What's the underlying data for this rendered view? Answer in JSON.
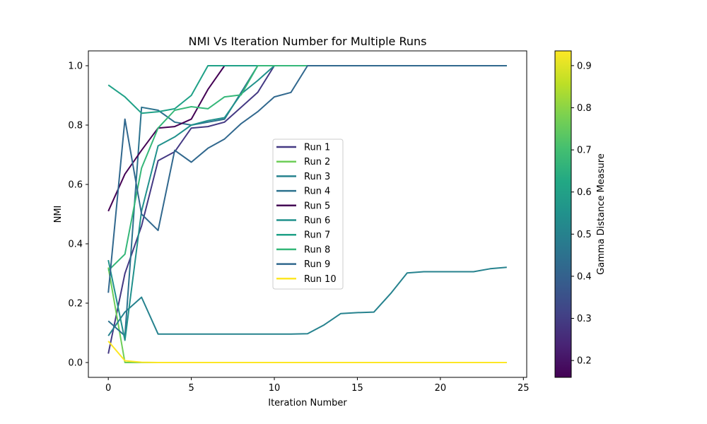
{
  "chart_data": {
    "type": "line",
    "title": "NMI Vs Iteration Number for Multiple Runs",
    "xlabel": "Iteration Number",
    "ylabel": "NMI",
    "xlim": [
      -1.2,
      25.2
    ],
    "ylim": [
      -0.05,
      1.05
    ],
    "xticks": [
      0,
      5,
      10,
      15,
      20,
      25
    ],
    "yticks": [
      0.0,
      0.2,
      0.4,
      0.6,
      0.8,
      1.0
    ],
    "x": [
      0,
      1,
      2,
      3,
      4,
      5,
      6,
      7,
      8,
      9,
      10,
      11,
      12,
      13,
      14,
      15,
      16,
      17,
      18,
      19,
      20,
      21,
      22,
      23,
      24
    ],
    "legend_position": "center",
    "colorbar": {
      "label": "Gamma Distance Measure",
      "min": 0.16,
      "max": 0.935,
      "ticks": [
        0.2,
        0.3,
        0.4,
        0.5,
        0.6,
        0.7,
        0.8,
        0.9
      ],
      "colormap": "viridis"
    },
    "series": [
      {
        "name": "Run 1",
        "color": "#443983",
        "values": [
          0.03,
          0.3,
          0.46,
          0.68,
          0.71,
          0.79,
          0.795,
          0.81,
          0.86,
          0.91,
          1.0,
          1,
          1,
          1,
          1,
          1,
          1,
          1,
          1,
          1,
          1,
          1,
          1,
          1,
          1
        ]
      },
      {
        "name": "Run 2",
        "color": "#6ece58",
        "values": [
          0.32,
          0.0,
          0,
          0,
          0,
          0,
          0,
          0,
          0,
          0,
          0,
          0,
          0,
          0,
          0,
          0,
          0,
          0,
          0,
          0,
          0,
          0,
          0,
          0,
          0
        ]
      },
      {
        "name": "Run 3",
        "color": "#26828e",
        "values": [
          0.09,
          0.17,
          0.22,
          0.096,
          0.096,
          0.096,
          0.096,
          0.096,
          0.096,
          0.096,
          0.096,
          0.096,
          0.097,
          0.127,
          0.165,
          0.168,
          0.17,
          0.232,
          0.302,
          0.306,
          0.306,
          0.306,
          0.306,
          0.316,
          0.321
        ]
      },
      {
        "name": "Run 4",
        "color": "#2c728e",
        "values": [
          0.14,
          0.09,
          0.86,
          0.85,
          0.81,
          0.8,
          0.81,
          0.82,
          0.91,
          1.0,
          1,
          1,
          1,
          1,
          1,
          1,
          1,
          1,
          1,
          1,
          1,
          1,
          1,
          1,
          1
        ]
      },
      {
        "name": "Run 5",
        "color": "#440154",
        "values": [
          0.51,
          0.635,
          0.715,
          0.79,
          0.795,
          0.82,
          0.92,
          1.0,
          1,
          1,
          1,
          1,
          1,
          1,
          1,
          1,
          1,
          1,
          1,
          1,
          1,
          1,
          1,
          1,
          1
        ]
      },
      {
        "name": "Run 6",
        "color": "#21918c",
        "values": [
          0.345,
          0.075,
          0.51,
          0.73,
          0.76,
          0.8,
          0.815,
          0.825,
          0.905,
          0.95,
          1.0,
          1,
          1,
          1,
          1,
          1,
          1,
          1,
          1,
          1,
          1,
          1,
          1,
          1,
          1
        ]
      },
      {
        "name": "Run 7",
        "color": "#1fa187",
        "values": [
          0.935,
          0.895,
          0.84,
          0.845,
          0.855,
          0.9,
          1.0,
          1,
          1,
          1,
          1,
          1,
          1,
          1,
          1,
          1,
          1,
          1,
          1,
          1,
          1,
          1,
          1,
          1,
          1
        ]
      },
      {
        "name": "Run 8",
        "color": "#35b779",
        "values": [
          0.31,
          0.365,
          0.655,
          0.79,
          0.85,
          0.862,
          0.855,
          0.895,
          0.902,
          1.0,
          1,
          1,
          1,
          1,
          1,
          1,
          1,
          1,
          1,
          1,
          1,
          1,
          1,
          1,
          1
        ]
      },
      {
        "name": "Run 9",
        "color": "#31688e",
        "values": [
          0.235,
          0.82,
          0.5,
          0.445,
          0.715,
          0.675,
          0.722,
          0.753,
          0.805,
          0.845,
          0.895,
          0.91,
          1.0,
          1,
          1,
          1,
          1,
          1,
          1,
          1,
          1,
          1,
          1,
          1,
          1
        ]
      },
      {
        "name": "Run 10",
        "color": "#fde725",
        "values": [
          0.072,
          0.006,
          0.001,
          0,
          0,
          0,
          0,
          0,
          0,
          0,
          0,
          0,
          0,
          0,
          0,
          0,
          0,
          0,
          0,
          0,
          0,
          0,
          0,
          0,
          0
        ]
      }
    ]
  }
}
